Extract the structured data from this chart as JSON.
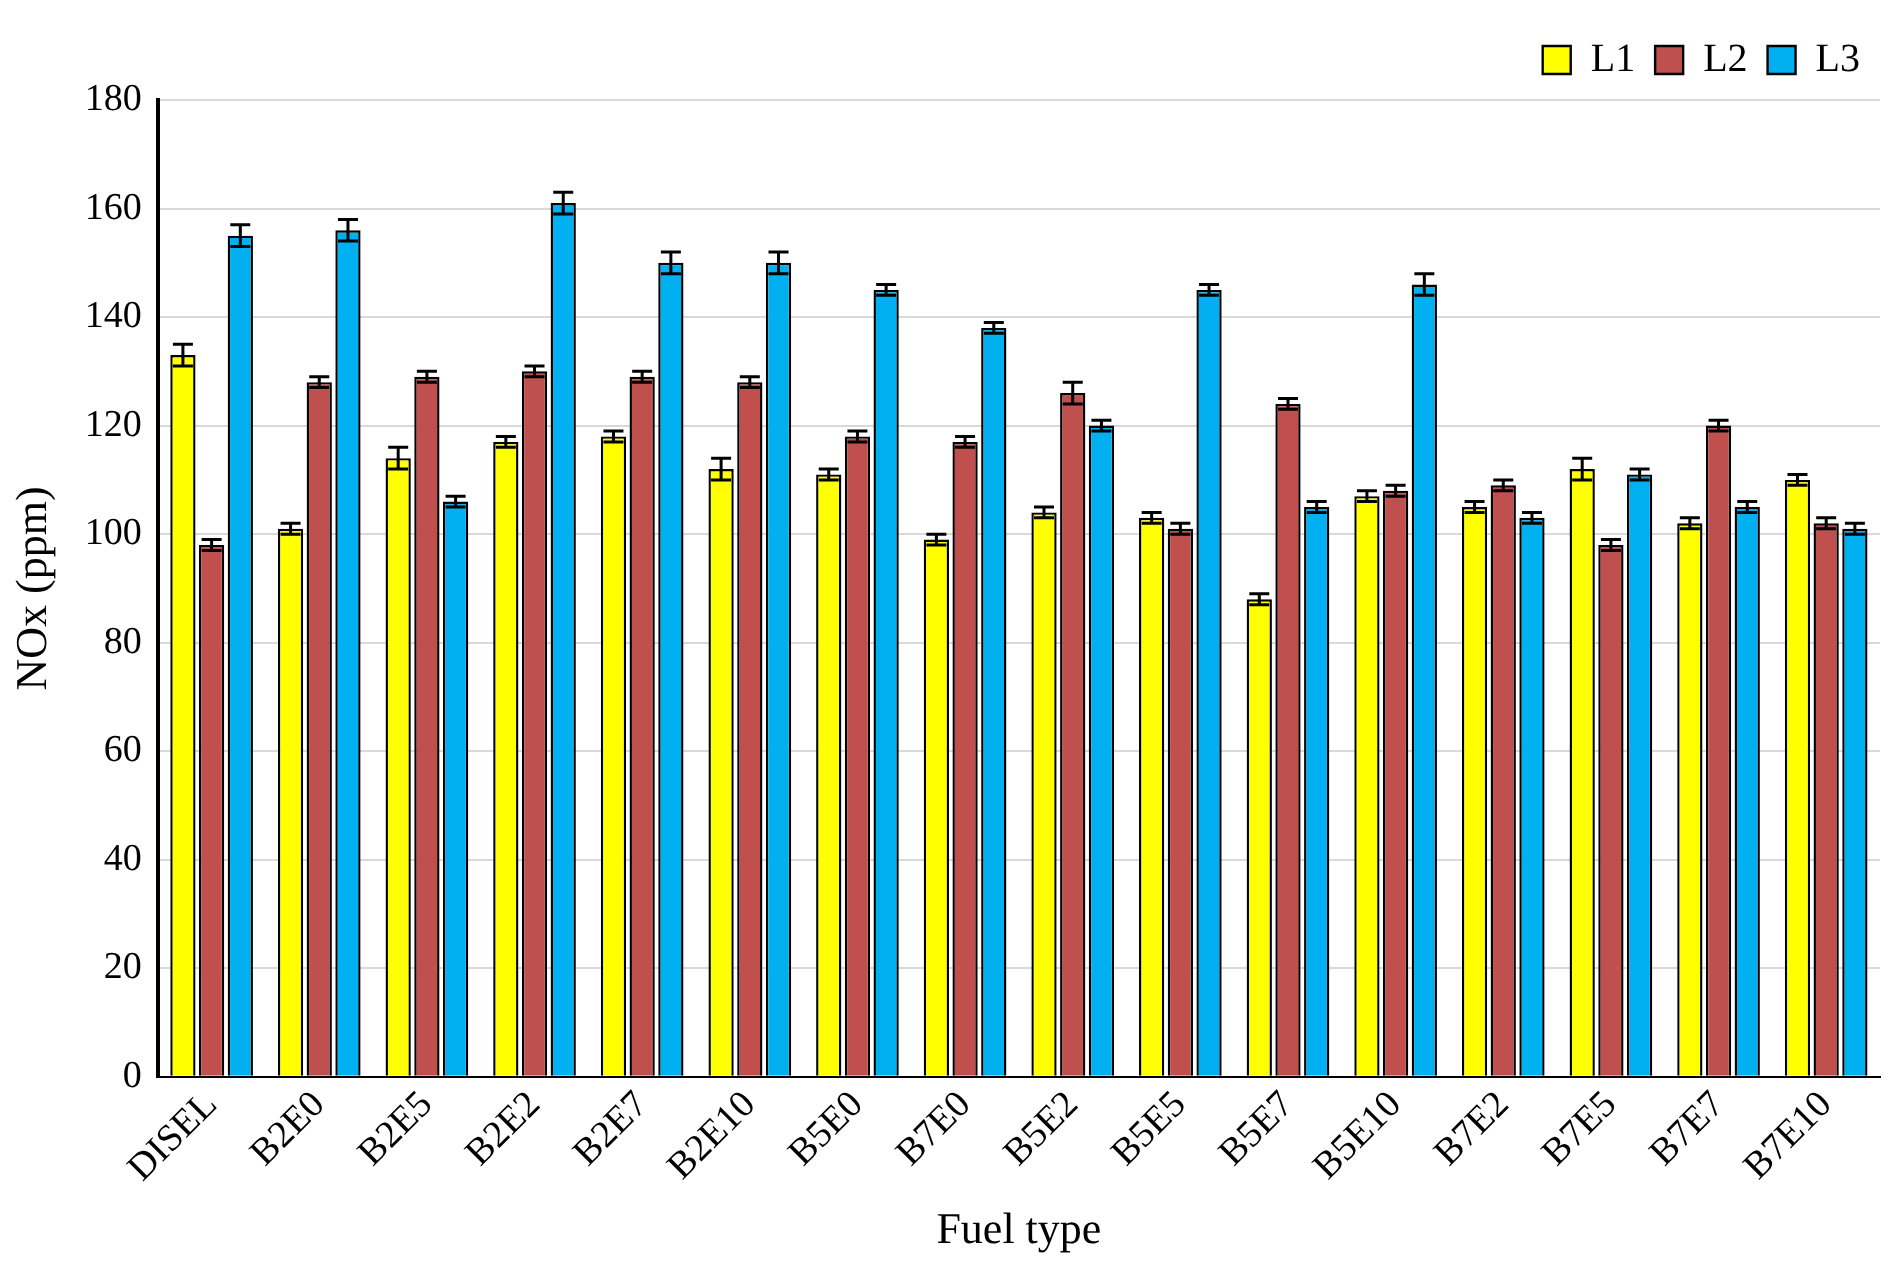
{
  "chart_data": {
    "type": "bar",
    "xlabel": "Fuel type",
    "ylabel": "NOx (ppm)",
    "categories": [
      "DISEL",
      "B2E0",
      "B2E5",
      "B2E2",
      "B2E7",
      "B2E10",
      "B5E0",
      "B7E0",
      "B5E2",
      "B5E5",
      "B5E7",
      "B5E10",
      "B7E2",
      "B7E5",
      "B7E7",
      "B7E10"
    ],
    "series": [
      {
        "name": "L1",
        "color": "#ffff00",
        "values": [
          133,
          101,
          114,
          117,
          118,
          112,
          111,
          99,
          104,
          103,
          88,
          107,
          105,
          112,
          102,
          110
        ],
        "errors": [
          2,
          1,
          2,
          1,
          1,
          2,
          1,
          1,
          1,
          1,
          1,
          1,
          1,
          2,
          1,
          1
        ]
      },
      {
        "name": "L2",
        "color": "#c0504d",
        "values": [
          98,
          128,
          129,
          130,
          129,
          128,
          118,
          117,
          126,
          101,
          124,
          108,
          109,
          98,
          120,
          102
        ],
        "errors": [
          1,
          1,
          1,
          1,
          1,
          1,
          1,
          1,
          2,
          1,
          1,
          1,
          1,
          1,
          1,
          1
        ]
      },
      {
        "name": "L3",
        "color": "#00b0f0",
        "values": [
          155,
          156,
          106,
          161,
          150,
          150,
          145,
          138,
          120,
          145,
          105,
          146,
          103,
          111,
          105,
          101
        ],
        "errors": [
          2,
          2,
          1,
          2,
          2,
          2,
          1,
          1,
          1,
          1,
          1,
          2,
          1,
          1,
          1,
          1
        ]
      }
    ],
    "ylim": [
      0,
      180
    ],
    "yticks": [
      0,
      20,
      40,
      60,
      80,
      100,
      120,
      140,
      160,
      180
    ],
    "grid": "y",
    "legend": "top right"
  }
}
